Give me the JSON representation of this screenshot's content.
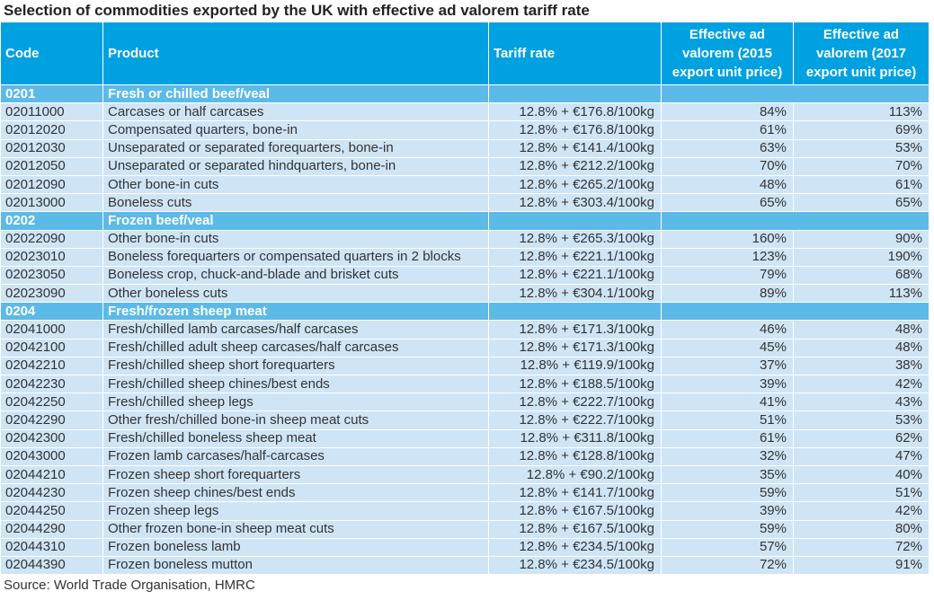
{
  "title": "Selection of commodities exported by the UK with effective ad valorem tariff rate",
  "header": [
    "Code",
    "Product",
    "Tariff rate",
    "Effective ad valorem (2015 export unit price)",
    "Effective ad valorem (2017 export unit price)"
  ],
  "groups": [
    {
      "code": "0201",
      "name": "Fresh or chilled beef/veal",
      "rows": [
        [
          "02011000",
          "Carcases or half carcases",
          "12.8% + €176.8/100kg",
          "84%",
          "113%"
        ],
        [
          "02012020",
          "Compensated quarters, bone-in",
          "12.8% + €176.8/100kg",
          "61%",
          "69%"
        ],
        [
          "02012030",
          "Unseparated or separated forequarters, bone-in",
          "12.8% + €141.4/100kg",
          "63%",
          "53%"
        ],
        [
          "02012050",
          "Unseparated or separated hindquarters, bone-in",
          "12.8% + €212.2/100kg",
          "70%",
          "70%"
        ],
        [
          "02012090",
          "Other bone-in cuts",
          "12.8% + €265.2/100kg",
          "48%",
          "61%"
        ],
        [
          "02013000",
          "Boneless cuts",
          "12.8% + €303.4/100kg",
          "65%",
          "65%"
        ]
      ]
    },
    {
      "code": "0202",
      "name": "Frozen beef/veal",
      "rows": [
        [
          "02022090",
          "Other bone-in cuts",
          "12.8% + €265.3/100kg",
          "160%",
          "90%"
        ],
        [
          "02023010",
          "Boneless forequarters or compensated quarters in 2 blocks",
          "12.8% + €221.1/100kg",
          "123%",
          "190%"
        ],
        [
          "02023050",
          "Boneless crop, chuck-and-blade and brisket cuts",
          "12.8% + €221.1/100kg",
          "79%",
          "68%"
        ],
        [
          "02023090",
          "Other boneless cuts",
          "12.8% + €304.1/100kg",
          "89%",
          "113%"
        ]
      ]
    },
    {
      "code": "0204",
      "name": "Fresh/frozen sheep meat",
      "rows": [
        [
          "02041000",
          "Fresh/chilled lamb carcases/half carcases",
          "12.8% + €171.3/100kg",
          "46%",
          "48%"
        ],
        [
          "02042100",
          "Fresh/chilled adult sheep carcases/half carcases",
          "12.8% + €171.3/100kg",
          "45%",
          "48%"
        ],
        [
          "02042210",
          "Fresh/chilled sheep short forequarters",
          "12.8% + €119.9/100kg",
          "37%",
          "38%"
        ],
        [
          "02042230",
          "Fresh/chilled sheep chines/best ends",
          "12.8% + €188.5/100kg",
          "39%",
          "42%"
        ],
        [
          "02042250",
          "Fresh/chilled sheep legs",
          "12.8% + €222.7/100kg",
          "41%",
          "43%"
        ],
        [
          "02042290",
          "Other fresh/chilled bone-in sheep meat cuts",
          "12.8% + €222.7/100kg",
          "51%",
          "53%"
        ],
        [
          "02042300",
          "Fresh/chilled boneless sheep meat",
          "12.8% + €311.8/100kg",
          "61%",
          "62%"
        ],
        [
          "02043000",
          "Frozen lamb carcases/half-carcases",
          "12.8% + €128.8/100kg",
          "32%",
          "47%"
        ],
        [
          "02044210",
          "Frozen sheep short forequarters",
          "12.8% + €90.2/100kg",
          "35%",
          "40%"
        ],
        [
          "02044230",
          "Frozen sheep chines/best ends",
          "12.8% + €141.7/100kg",
          "59%",
          "51%"
        ],
        [
          "02044250",
          "Frozen sheep legs",
          "12.8% + €167.5/100kg",
          "39%",
          "42%"
        ],
        [
          "02044290",
          "Other frozen bone-in sheep meat cuts",
          "12.8% + €167.5/100kg",
          "59%",
          "80%"
        ],
        [
          "02044310",
          "Frozen boneless lamb",
          "12.8% + €234.5/100kg",
          "57%",
          "72%"
        ],
        [
          "02044390",
          "Frozen boneless mutton",
          "12.8% + €234.5/100kg",
          "72%",
          "91%"
        ]
      ]
    }
  ],
  "source": "Source: World Trade Organisation, HMRC"
}
